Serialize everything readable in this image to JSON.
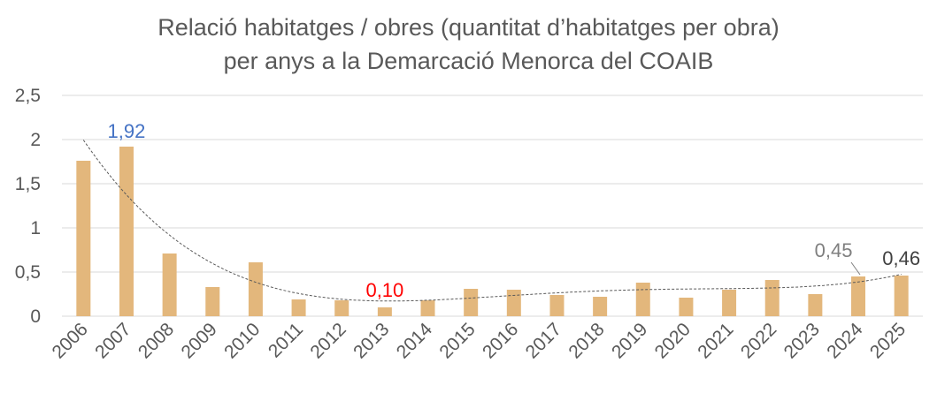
{
  "chart_data": {
    "type": "bar",
    "title_line1": "Relació habitatges / obres (quantitat d’habitatges per obra)",
    "title_line2": "per anys a la Demarcació Menorca del COAIB",
    "categories": [
      "2006",
      "2007",
      "2008",
      "2009",
      "2010",
      "2011",
      "2012",
      "2013",
      "2014",
      "2015",
      "2016",
      "2017",
      "2018",
      "2019",
      "2020",
      "2021",
      "2022",
      "2023",
      "2024",
      "2025"
    ],
    "values": [
      1.76,
      1.92,
      0.71,
      0.33,
      0.61,
      0.19,
      0.18,
      0.1,
      0.18,
      0.31,
      0.3,
      0.24,
      0.22,
      0.38,
      0.21,
      0.3,
      0.41,
      0.25,
      0.45,
      0.46
    ],
    "trendline": "polynomial",
    "y_ticks": [
      "0",
      "0,5",
      "1",
      "1,5",
      "2",
      "2,5"
    ],
    "ylim": [
      0,
      2.5
    ],
    "grid": true,
    "data_labels": [
      {
        "category": "2007",
        "text": "1,92",
        "color": "#4472C4"
      },
      {
        "category": "2013",
        "text": "0,10",
        "color": "#FF0000"
      },
      {
        "category": "2024",
        "text": "0,45",
        "color": "#7F7F7F"
      },
      {
        "category": "2025",
        "text": "0,46",
        "color": "#404040"
      }
    ],
    "colors": {
      "bar": "#E3B77C",
      "grid": "#D9D9D9",
      "text": "#595959",
      "trend": "#595959"
    }
  }
}
